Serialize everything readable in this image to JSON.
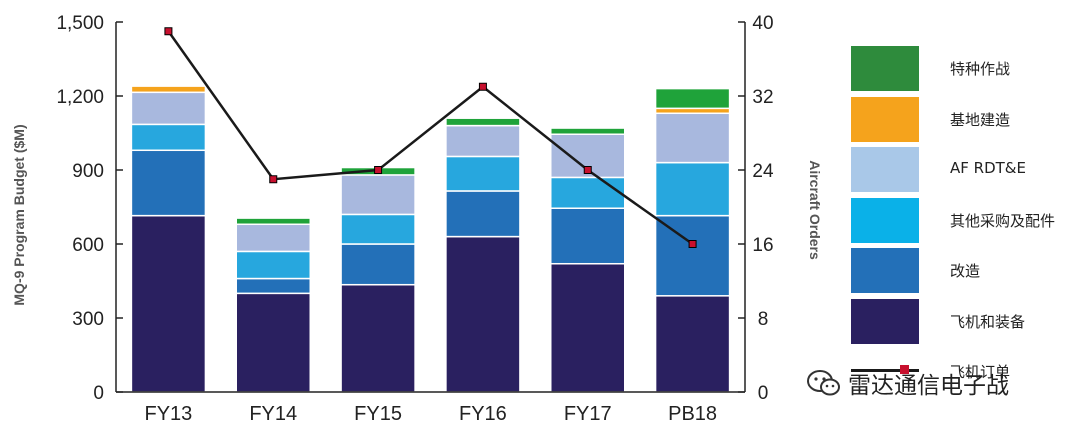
{
  "chart_data": {
    "type": "bar",
    "stacked": true,
    "categories": [
      "FY13",
      "FY14",
      "FY15",
      "FY16",
      "FY17",
      "PB18"
    ],
    "ylabel": "MQ-9 Program Budget ($M)",
    "y2label": "Aircraft Orders",
    "ylim": [
      0,
      1500
    ],
    "y2lim": [
      0,
      40
    ],
    "yticks": [
      0,
      300,
      600,
      900,
      1200,
      1500
    ],
    "yticks_labels": [
      "0",
      "300",
      "600",
      "900",
      "1,200",
      "1,500"
    ],
    "y2ticks": [
      0,
      8,
      16,
      24,
      32,
      40
    ],
    "y2ticks_labels": [
      "0",
      "8",
      "16",
      "24",
      "32",
      "40"
    ],
    "series": [
      {
        "name": "飞机和装备",
        "color": "#2a2060",
        "values": [
          715,
          400,
          435,
          630,
          520,
          390
        ]
      },
      {
        "name": "改造",
        "color": "#2370b8",
        "values": [
          265,
          60,
          165,
          185,
          225,
          325
        ]
      },
      {
        "name": "其他采购及配件",
        "color": "#27a7de",
        "values": [
          105,
          110,
          120,
          140,
          125,
          215
        ]
      },
      {
        "name": "AF RDT&E",
        "color": "#a8b8de",
        "values": [
          130,
          110,
          160,
          125,
          175,
          200
        ]
      },
      {
        "name": "基地建造",
        "color": "#f5a31c",
        "values": [
          25,
          0,
          0,
          0,
          0,
          20
        ]
      },
      {
        "name": "特种作战",
        "color": "#1fa33a",
        "values": [
          0,
          25,
          30,
          30,
          25,
          80
        ]
      }
    ],
    "line_series": {
      "name": "飞机订单",
      "color": "#1a1a1a",
      "marker_color": "#c8102e",
      "values": [
        39,
        23,
        24,
        33,
        24,
        16
      ]
    },
    "legend": {
      "position": "right",
      "items": [
        {
          "label": "特种作战",
          "color": "#2e8b3c"
        },
        {
          "label": "基地建造",
          "color": "#f5a31c"
        },
        {
          "label": "AF RDT&E",
          "color": "#a9c8e8"
        },
        {
          "label": "其他采购及配件",
          "color": "#0ab1e8"
        },
        {
          "label": "改造",
          "color": "#2370b8"
        },
        {
          "label": "飞机和装备",
          "color": "#2a2060"
        },
        {
          "label": "飞机订单",
          "color": "#1a1a1a",
          "line": true
        }
      ]
    }
  },
  "watermark": {
    "text": "雷达通信电子战",
    "icon": "wechat-icon"
  }
}
